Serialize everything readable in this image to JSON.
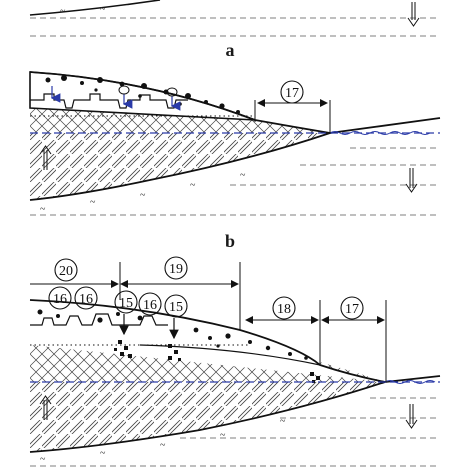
{
  "figure": {
    "panels": [
      {
        "id": "a",
        "label": "a"
      },
      {
        "id": "b",
        "label": "b"
      }
    ],
    "zone_labels_a": [
      "17"
    ],
    "zone_labels_b": [
      "20",
      "19",
      "18",
      "17",
      "16",
      "16",
      "16",
      "15",
      "15"
    ]
  },
  "colors": {
    "ink": "#111111",
    "water_line": "#2a3aa8",
    "arrow_blue": "#2a3aa8"
  },
  "icons": [
    "up-arrow-icon",
    "down-arrow-icon",
    "wave-icon"
  ]
}
